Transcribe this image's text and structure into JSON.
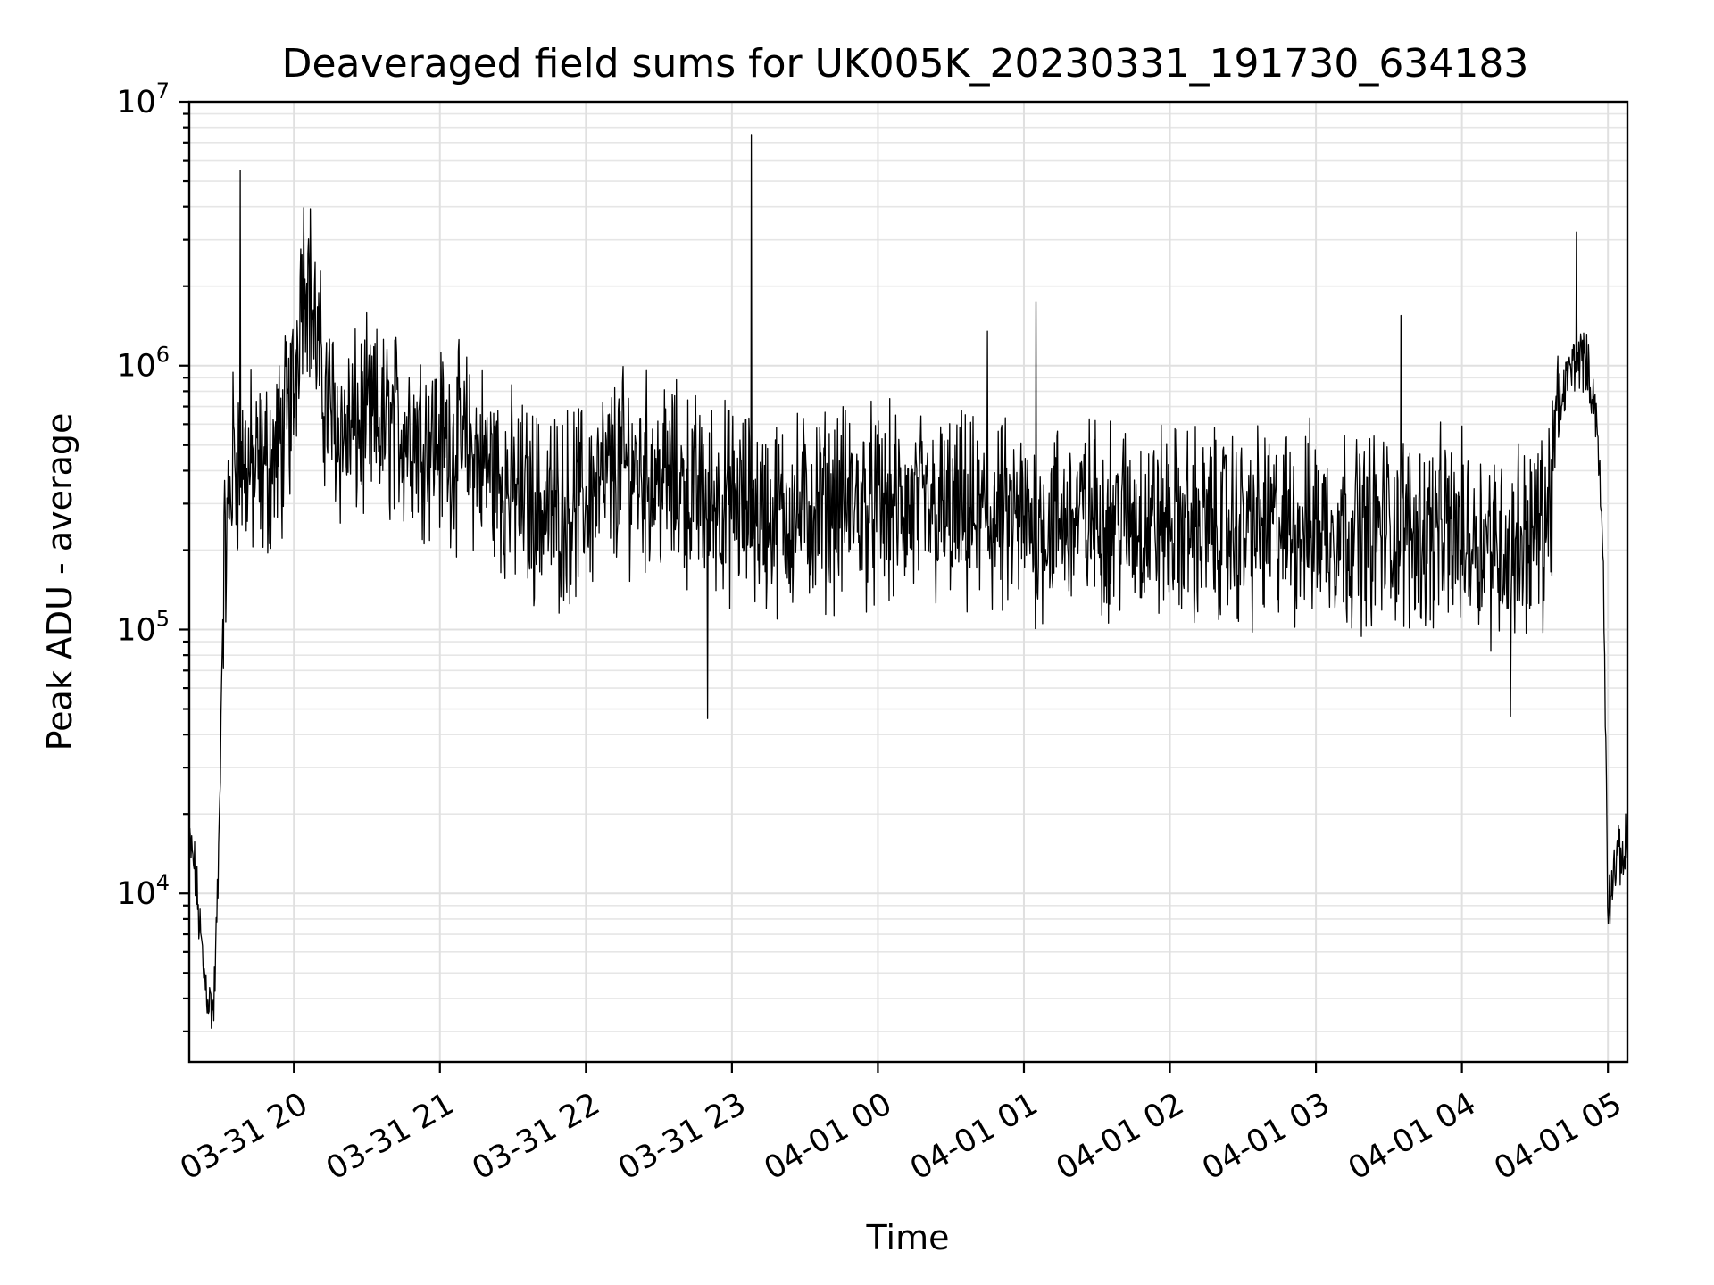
{
  "chart_data": {
    "type": "line",
    "title": "Deaveraged field sums for UK005K_20230331_191730_634183",
    "xlabel": "Time",
    "ylabel": "Peak ADU - average",
    "yscale": "log",
    "grid": true,
    "x_ticks": [
      "03-31 20",
      "03-31 21",
      "03-31 22",
      "03-31 23",
      "04-01 00",
      "04-01 01",
      "04-01 02",
      "04-01 03",
      "04-01 04",
      "04-01 05"
    ],
    "y_ticks": [
      {
        "base": "10",
        "exp": "4",
        "value": 10000
      },
      {
        "base": "10",
        "exp": "5",
        "value": 100000
      },
      {
        "base": "10",
        "exp": "6",
        "value": 1000000
      },
      {
        "base": "10",
        "exp": "7",
        "value": 10000000
      }
    ],
    "xlim": [
      "2023-03-31 19:17",
      "2023-04-01 05:08"
    ],
    "ylim": [
      2300,
      10000000
    ],
    "series_color": "#000000",
    "series": [
      {
        "x": [
          "2023-03-31 19:17",
          "2023-03-31 19:19",
          "2023-03-31 19:21",
          "2023-03-31 19:23",
          "2023-03-31 19:25",
          "2023-03-31 19:27",
          "2023-03-31 19:29",
          "2023-03-31 19:31",
          "2023-03-31 19:35",
          "2023-03-31 19:40",
          "2023-03-31 19:45",
          "2023-03-31 19:50",
          "2023-03-31 19:55",
          "2023-03-31 20:00",
          "2023-03-31 20:03",
          "2023-03-31 20:05",
          "2023-03-31 20:08",
          "2023-03-31 20:12",
          "2023-03-31 20:20",
          "2023-03-31 20:30",
          "2023-03-31 20:45",
          "2023-03-31 21:00",
          "2023-03-31 21:15",
          "2023-03-31 21:30",
          "2023-03-31 21:45",
          "2023-03-31 22:00",
          "2023-03-31 22:15",
          "2023-03-31 22:30",
          "2023-03-31 22:45",
          "2023-03-31 23:00",
          "2023-03-31 23:15",
          "2023-03-31 23:30",
          "2023-03-31 23:45",
          "2023-04-01 00:00",
          "2023-04-01 00:30",
          "2023-04-01 01:00",
          "2023-04-01 01:30",
          "2023-04-01 02:00",
          "2023-04-01 02:30",
          "2023-04-01 03:00",
          "2023-04-01 03:30",
          "2023-04-01 04:00",
          "2023-04-01 04:20",
          "2023-04-01 04:35",
          "2023-04-01 04:40",
          "2023-04-01 04:45",
          "2023-04-01 04:50",
          "2023-04-01 04:55",
          "2023-04-01 04:58",
          "2023-04-01 05:00",
          "2023-04-01 05:03",
          "2023-04-01 05:08"
        ],
        "y": [
          15000,
          13000,
          8000,
          5000,
          4000,
          3500,
          12000,
          150000,
          450000,
          420000,
          380000,
          420000,
          500000,
          800000,
          2200000,
          2500000,
          1500000,
          800000,
          550000,
          600000,
          580000,
          520000,
          460000,
          330000,
          280000,
          310000,
          420000,
          380000,
          330000,
          300000,
          270000,
          280000,
          300000,
          290000,
          270000,
          250000,
          270000,
          250000,
          240000,
          250000,
          240000,
          230000,
          210000,
          250000,
          700000,
          1000000,
          1100000,
          700000,
          200000,
          9000,
          13000,
          15000
        ],
        "spikes": [
          {
            "x": "2023-03-31 19:38",
            "y": 5500000
          },
          {
            "x": "2023-03-31 23:08",
            "y": 7500000
          },
          {
            "x": "2023-03-31 22:50",
            "y": 46000
          },
          {
            "x": "2023-04-01 04:47",
            "y": 3200000
          },
          {
            "x": "2023-04-01 00:45",
            "y": 1350000
          },
          {
            "x": "2023-04-01 01:05",
            "y": 1750000
          },
          {
            "x": "2023-04-01 03:35",
            "y": 1550000
          },
          {
            "x": "2023-04-01 04:20",
            "y": 47000
          }
        ]
      }
    ]
  }
}
